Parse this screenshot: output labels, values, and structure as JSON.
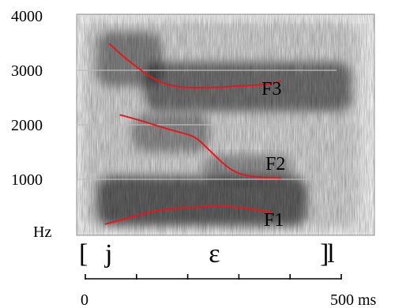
{
  "chart_data": {
    "type": "spectrogram",
    "title": "",
    "xlabel": "",
    "ylabel": "Hz",
    "ylim": [
      0,
      4000
    ],
    "xlim": [
      0,
      500
    ],
    "y_ticks": [
      {
        "value": 4000,
        "label": "4000"
      },
      {
        "value": 3000,
        "label": "3000"
      },
      {
        "value": 2000,
        "label": "2000"
      },
      {
        "value": 1000,
        "label": "1000"
      }
    ],
    "y_unit_label": "Hz",
    "x_tick_values": [
      0,
      100,
      200,
      300,
      400,
      500
    ],
    "x_tick_labels": [
      {
        "value": 0,
        "label": "0"
      },
      {
        "value": 500,
        "label": "500 ms"
      }
    ],
    "grid_lines_hz": [
      1000,
      2000,
      3000
    ],
    "transcription": {
      "open_bracket": "[",
      "segments": [
        {
          "symbol": "j",
          "time_ms": 40
        },
        {
          "symbol": "ɛ",
          "time_ms": 215
        },
        {
          "symbol": "l",
          "time_ms": 415
        }
      ],
      "close_bracket": "]"
    },
    "series": [
      {
        "name": "F3",
        "color": "#e8161c",
        "points": [
          [
            52,
            3480
          ],
          [
            80,
            3200
          ],
          [
            130,
            2800
          ],
          [
            170,
            2680
          ],
          [
            220,
            2680
          ],
          [
            280,
            2720
          ],
          [
            320,
            2740
          ],
          [
            340,
            2800
          ]
        ]
      },
      {
        "name": "F2",
        "color": "#e8161c",
        "points": [
          [
            70,
            2180
          ],
          [
            110,
            2060
          ],
          [
            150,
            1920
          ],
          [
            185,
            1820
          ],
          [
            200,
            1750
          ],
          [
            225,
            1480
          ],
          [
            255,
            1170
          ],
          [
            285,
            1050
          ],
          [
            340,
            1020
          ]
        ]
      },
      {
        "name": "F1",
        "color": "#e8161c",
        "points": [
          [
            45,
            180
          ],
          [
            80,
            280
          ],
          [
            120,
            420
          ],
          [
            170,
            480
          ],
          [
            240,
            520
          ],
          [
            280,
            480
          ],
          [
            325,
            400
          ]
        ]
      }
    ],
    "energy_bands": [
      {
        "t": [
          30,
          385
        ],
        "f": [
          150,
          1050
        ],
        "strength": 1.0
      },
      {
        "t": [
          30,
          140
        ],
        "f": [
          2700,
          3700
        ],
        "strength": 0.7
      },
      {
        "t": [
          110,
          460
        ],
        "f": [
          2250,
          3150
        ],
        "strength": 0.85
      },
      {
        "t": [
          90,
          220
        ],
        "f": [
          1500,
          2200
        ],
        "strength": 0.6
      },
      {
        "t": [
          210,
          360
        ],
        "f": [
          950,
          1450
        ],
        "strength": 0.55
      },
      {
        "t": [
          10,
          470
        ],
        "f": [
          100,
          3900
        ],
        "strength": 0.22
      }
    ]
  }
}
